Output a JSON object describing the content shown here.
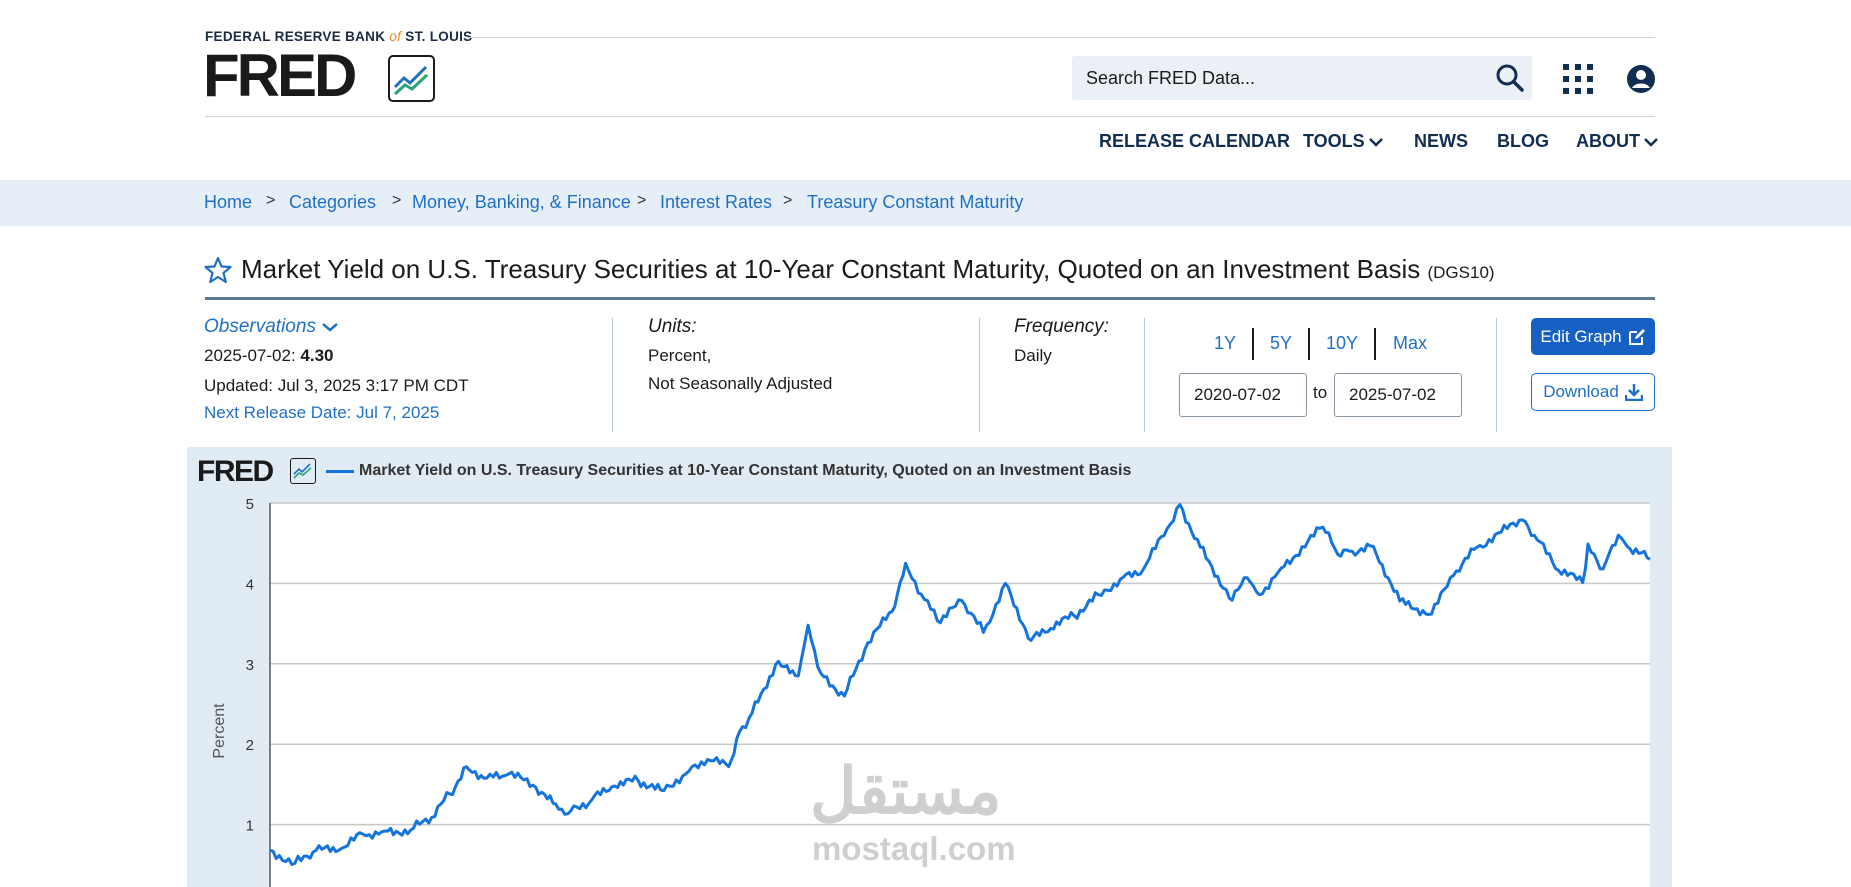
{
  "header": {
    "brand_line_left": "FEDERAL RESERVE BANK",
    "brand_line_of": "of",
    "brand_line_right": "ST. LOUIS",
    "logo_text": "FRED",
    "search_placeholder": "Search FRED Data...",
    "nav": [
      "RELEASE CALENDAR",
      "TOOLS",
      "NEWS",
      "BLOG",
      "ABOUT"
    ]
  },
  "breadcrumb": [
    "Home",
    "Categories",
    "Money, Banking, & Finance",
    "Interest Rates",
    "Treasury Constant Maturity"
  ],
  "breadcrumb_sep": ">",
  "series": {
    "title": "Market Yield on U.S. Treasury Securities at 10-Year Constant Maturity, Quoted on an Investment Basis",
    "code": "(DGS10)"
  },
  "meta": {
    "observations_label": "Observations",
    "obs_date": "2025-07-02:",
    "obs_value": "4.30",
    "updated": "Updated: Jul 3, 2025 3:17 PM CDT",
    "next_release": "Next Release Date: Jul 7, 2025",
    "units_label": "Units:",
    "units_value_1": "Percent,",
    "units_value_2": "Not Seasonally Adjusted",
    "frequency_label": "Frequency:",
    "frequency_value": "Daily",
    "range_buttons": [
      "1Y",
      "5Y",
      "10Y",
      "Max"
    ],
    "start_date": "2020-07-02",
    "to_label": "to",
    "end_date": "2025-07-02",
    "edit_graph": "Edit Graph",
    "download": "Download"
  },
  "chart": {
    "logo_text": "FRED",
    "watermark_1": "مستقل",
    "watermark_2": "mostaql.com"
  },
  "chart_data": {
    "type": "line",
    "title": "Market Yield on U.S. Treasury Securities at 10-Year Constant Maturity, Quoted on an Investment Basis",
    "ylabel": "Percent",
    "xlabel": "",
    "ylim": [
      0,
      5
    ],
    "yticks": [
      "1",
      "2",
      "3",
      "4",
      "5"
    ],
    "xlim": [
      "2020-07-02",
      "2025-07-02"
    ],
    "grid": true,
    "legend": "top-left",
    "line_color": "#1573dc",
    "series": [
      {
        "name": "Market Yield on U.S. Treasury Securities at 10-Year Constant Maturity, Quoted on an Investment Basis",
        "x": [
          "2020-07-02",
          "2020-08-04",
          "2020-09-01",
          "2020-10-01",
          "2020-11-02",
          "2020-12-01",
          "2021-01-04",
          "2021-02-01",
          "2021-02-25",
          "2021-03-19",
          "2021-04-15",
          "2021-05-14",
          "2021-06-15",
          "2021-07-19",
          "2021-08-04",
          "2021-09-01",
          "2021-10-01",
          "2021-11-01",
          "2021-12-01",
          "2022-01-03",
          "2022-02-01",
          "2022-03-01",
          "2022-03-15",
          "2022-04-01",
          "2022-05-02",
          "2022-06-01",
          "2022-06-14",
          "2022-07-01",
          "2022-08-01",
          "2022-09-01",
          "2022-10-03",
          "2022-10-21",
          "2022-11-15",
          "2022-12-06",
          "2023-01-03",
          "2023-02-01",
          "2023-03-02",
          "2023-04-05",
          "2023-05-01",
          "2023-06-01",
          "2023-07-03",
          "2023-08-01",
          "2023-09-01",
          "2023-10-02",
          "2023-10-19",
          "2023-11-15",
          "2023-12-27",
          "2024-01-16",
          "2024-02-01",
          "2024-03-01",
          "2024-04-25",
          "2024-05-15",
          "2024-06-03",
          "2024-07-01",
          "2024-08-05",
          "2024-09-16",
          "2024-10-15",
          "2024-11-15",
          "2025-01-14",
          "2025-02-03",
          "2025-03-03",
          "2025-04-04",
          "2025-04-11",
          "2025-05-01",
          "2025-05-21",
          "2025-06-02",
          "2025-07-02"
        ],
        "y": [
          0.68,
          0.52,
          0.68,
          0.68,
          0.88,
          0.92,
          0.93,
          1.09,
          1.38,
          1.72,
          1.58,
          1.63,
          1.49,
          1.19,
          1.17,
          1.31,
          1.48,
          1.55,
          1.43,
          1.63,
          1.81,
          1.72,
          2.15,
          2.39,
          2.99,
          2.85,
          3.48,
          2.88,
          2.6,
          3.26,
          3.65,
          4.25,
          3.8,
          3.51,
          3.79,
          3.39,
          4.0,
          3.29,
          3.44,
          3.6,
          3.86,
          4.05,
          4.18,
          4.68,
          4.98,
          4.45,
          3.79,
          4.07,
          3.86,
          4.19,
          4.7,
          4.36,
          4.4,
          4.46,
          3.78,
          3.62,
          4.1,
          4.45,
          4.79,
          4.54,
          4.16,
          4.01,
          4.49,
          4.18,
          4.6,
          4.46,
          4.3
        ]
      }
    ]
  }
}
